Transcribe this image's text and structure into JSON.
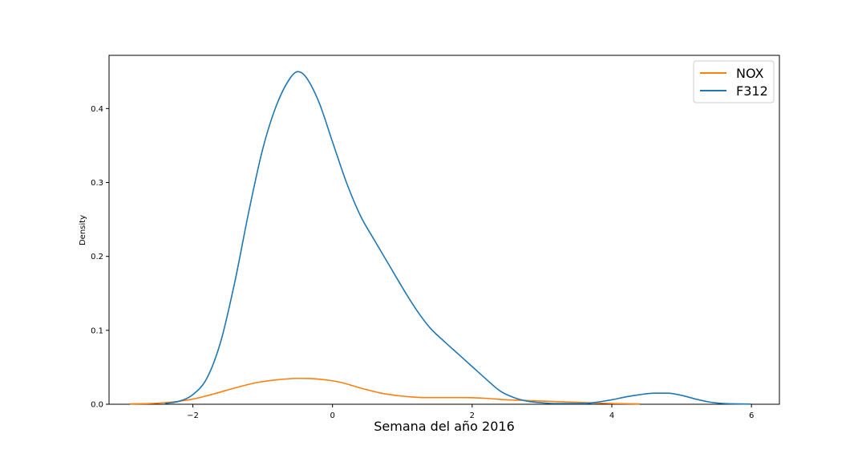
{
  "chart_data": {
    "type": "line",
    "title": "",
    "xlabel": "Semana del año 2016",
    "ylabel": "Density",
    "xlim": [
      -3.2,
      6.4
    ],
    "ylim": [
      0,
      0.472
    ],
    "x_ticks": [
      -2,
      0,
      2,
      4,
      6
    ],
    "x_tick_labels": [
      "−2",
      "0",
      "2",
      "4",
      "6"
    ],
    "y_ticks": [
      0.0,
      0.1,
      0.2,
      0.3,
      0.4
    ],
    "y_tick_labels": [
      "0.0",
      "0.1",
      "0.2",
      "0.3",
      "0.4"
    ],
    "grid": false,
    "legend_position": "top-right",
    "series": [
      {
        "name": "NOX",
        "color": "#ff7f0e",
        "x": [
          -2.9,
          -2.6,
          -2.3,
          -2.0,
          -1.7,
          -1.4,
          -1.1,
          -0.8,
          -0.5,
          -0.2,
          0.1,
          0.4,
          0.7,
          1.0,
          1.3,
          1.6,
          1.9,
          2.2,
          2.5,
          2.8,
          3.1,
          3.4,
          3.7,
          4.0,
          4.4
        ],
        "y": [
          0.0005,
          0.001,
          0.003,
          0.007,
          0.014,
          0.022,
          0.029,
          0.033,
          0.035,
          0.034,
          0.03,
          0.022,
          0.015,
          0.011,
          0.009,
          0.009,
          0.009,
          0.008,
          0.006,
          0.005,
          0.004,
          0.003,
          0.002,
          0.001,
          0.0005
        ]
      },
      {
        "name": "F312",
        "color": "#1f77b4",
        "x": [
          -2.4,
          -2.2,
          -2.0,
          -1.8,
          -1.6,
          -1.4,
          -1.2,
          -1.0,
          -0.8,
          -0.6,
          -0.5,
          -0.4,
          -0.2,
          0.0,
          0.2,
          0.4,
          0.6,
          0.8,
          1.0,
          1.2,
          1.4,
          1.6,
          1.8,
          2.0,
          2.2,
          2.4,
          2.6,
          2.8,
          3.0,
          3.2,
          3.4,
          3.6,
          3.8,
          4.0,
          4.2,
          4.4,
          4.6,
          4.7,
          4.8,
          5.0,
          5.2,
          5.4,
          5.6,
          5.8,
          6.0
        ],
        "y": [
          0.001,
          0.004,
          0.013,
          0.035,
          0.085,
          0.165,
          0.26,
          0.345,
          0.405,
          0.442,
          0.45,
          0.445,
          0.41,
          0.355,
          0.3,
          0.255,
          0.222,
          0.19,
          0.158,
          0.128,
          0.103,
          0.085,
          0.068,
          0.051,
          0.034,
          0.018,
          0.009,
          0.004,
          0.002,
          0.001,
          0.001,
          0.001,
          0.003,
          0.006,
          0.01,
          0.013,
          0.015,
          0.015,
          0.015,
          0.012,
          0.007,
          0.003,
          0.001,
          0.0005,
          0.0002
        ]
      }
    ]
  }
}
